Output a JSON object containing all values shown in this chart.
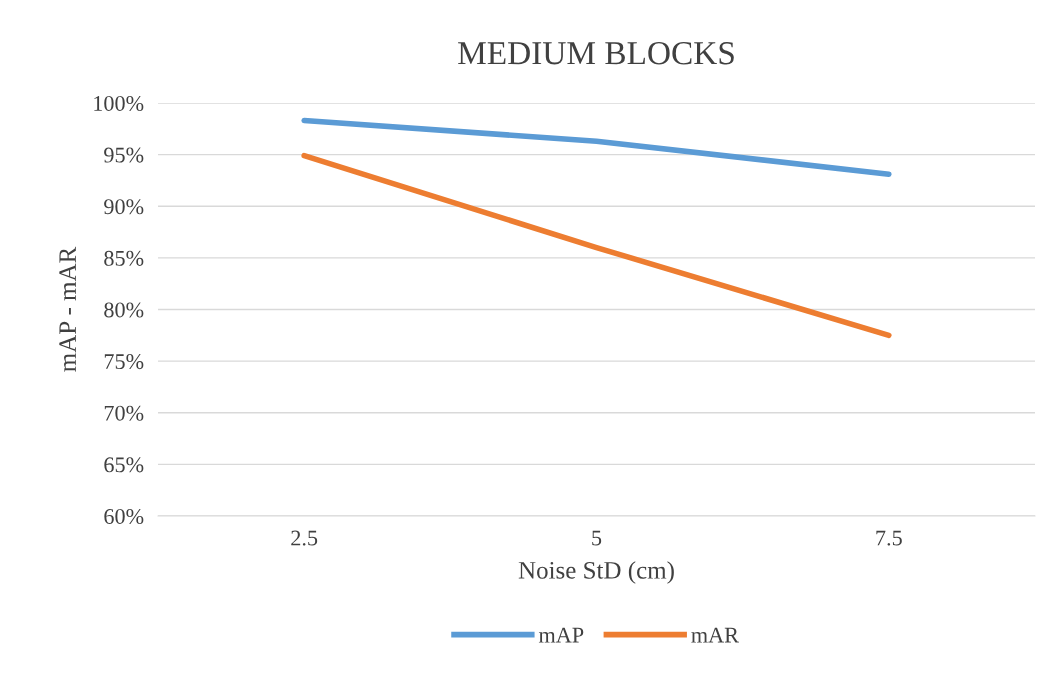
{
  "chart_data": {
    "type": "line",
    "title": "MEDIUM BLOCKS",
    "xlabel": "Noise StD (cm)",
    "ylabel": "mAP - mAR",
    "categories": [
      "2.5",
      "5",
      "7.5"
    ],
    "series": [
      {
        "name": "mAP",
        "color": "#5b9bd5",
        "values": [
          98.3,
          96.3,
          93.1
        ]
      },
      {
        "name": "mAR",
        "color": "#ed7d31",
        "values": [
          94.9,
          86.0,
          77.5
        ]
      }
    ],
    "ylim": [
      60,
      100
    ],
    "yticks": [
      {
        "value": 60,
        "label": "60%"
      },
      {
        "value": 65,
        "label": "65%"
      },
      {
        "value": 70,
        "label": "70%"
      },
      {
        "value": 75,
        "label": "75%"
      },
      {
        "value": 80,
        "label": "80%"
      },
      {
        "value": 85,
        "label": "85%"
      },
      {
        "value": 90,
        "label": "90%"
      },
      {
        "value": 95,
        "label": "95%"
      },
      {
        "value": 100,
        "label": "100%"
      }
    ],
    "grid": "y",
    "legend": "bottom",
    "marker": "none",
    "line_style": "solid"
  }
}
